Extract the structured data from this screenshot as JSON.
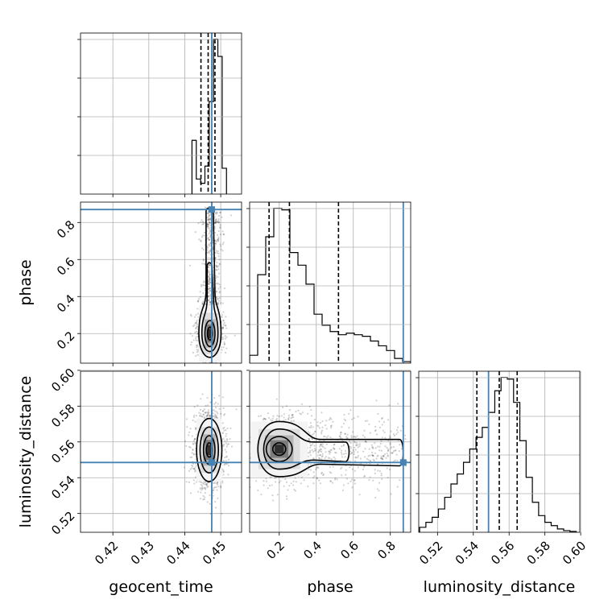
{
  "chart_data": {
    "type": "corner",
    "parameters": [
      {
        "name": "geocent_time",
        "label": "geocent_time",
        "range": [
          0.411,
          0.4558
        ],
        "ticks": [
          0.42,
          0.43,
          0.44,
          0.45
        ],
        "tick_labels": [
          "0.42",
          "0.43",
          "0.44",
          "0.45"
        ],
        "truth": 0.4475,
        "quantiles": [
          0.4445,
          0.4465,
          0.4484
        ]
      },
      {
        "name": "phase",
        "label": "phase",
        "range": [
          0.04,
          0.91
        ],
        "ticks": [
          0.2,
          0.4,
          0.6,
          0.8
        ],
        "tick_labels": [
          "0.2",
          "0.4",
          "0.6",
          "0.8"
        ],
        "truth": 0.87,
        "quantiles": [
          0.145,
          0.255,
          0.52
        ]
      },
      {
        "name": "luminosity_distance",
        "label": "luminosity_distance",
        "range": [
          0.5095,
          0.5995
        ],
        "ticks": [
          0.52,
          0.54,
          0.56,
          0.58,
          0.6
        ],
        "tick_labels": [
          "0.52",
          "0.54",
          "0.56",
          "0.58",
          "0.60"
        ],
        "truth": 0.5485,
        "quantiles": [
          0.542,
          0.5545,
          0.5645
        ]
      }
    ],
    "histograms": {
      "geocent_time": {
        "bin_edges": [
          0.442,
          0.4432,
          0.4444,
          0.4456,
          0.4468,
          0.448,
          0.4492,
          0.4504,
          0.4516
        ],
        "counts": [
          0.25,
          0.07,
          0.05,
          0.13,
          0.43,
          0.72,
          0.64,
          0.12
        ]
      },
      "phase": {
        "bin_edges": [
          0.04,
          0.0835,
          0.127,
          0.1705,
          0.214,
          0.2575,
          0.301,
          0.3445,
          0.388,
          0.4315,
          0.475,
          0.5185,
          0.562,
          0.6055,
          0.649,
          0.6925,
          0.736,
          0.7795,
          0.823,
          0.8665,
          0.91
        ],
        "counts": [
          0.05,
          0.56,
          0.8,
          0.98,
          0.97,
          0.7,
          0.62,
          0.5,
          0.31,
          0.24,
          0.2,
          0.18,
          0.19,
          0.18,
          0.17,
          0.14,
          0.11,
          0.08,
          0.03,
          0.01
        ]
      },
      "luminosity_distance": {
        "bin_edges": [
          0.51,
          0.5135,
          0.517,
          0.5205,
          0.524,
          0.5275,
          0.531,
          0.5345,
          0.538,
          0.5415,
          0.545,
          0.5485,
          0.552,
          0.5555,
          0.559,
          0.5625,
          0.566,
          0.5695,
          0.573,
          0.5765,
          0.58,
          0.5835,
          0.587,
          0.5905,
          0.594,
          0.5975
        ],
        "counts": [
          0.03,
          0.06,
          0.09,
          0.14,
          0.21,
          0.29,
          0.35,
          0.42,
          0.5,
          0.57,
          0.63,
          0.72,
          0.85,
          0.93,
          0.92,
          0.78,
          0.55,
          0.33,
          0.18,
          0.1,
          0.06,
          0.04,
          0.02,
          0.01,
          0.005
        ]
      }
    },
    "densities": [
      {
        "x": "geocent_time",
        "y": "phase",
        "center": [
          0.447,
          0.2
        ],
        "spread": [
          0.0014,
          0.07
        ],
        "tail": {
          "end_y": 0.86,
          "width": 0.0014,
          "offset_x": 0.0006
        }
      },
      {
        "x": "geocent_time",
        "y": "luminosity_distance",
        "center": [
          0.4468,
          0.5555
        ],
        "spread": [
          0.0016,
          0.008
        ]
      },
      {
        "x": "phase",
        "y": "luminosity_distance",
        "center": [
          0.2,
          0.556
        ],
        "spread": [
          0.07,
          0.007
        ],
        "tail": {
          "end_x": 0.85,
          "width": 0.01,
          "offset_y": -0.0005
        }
      }
    ],
    "truth_color": "#4682b4",
    "hist_color": "#000000",
    "contour_color": "#000000",
    "grid": true
  }
}
